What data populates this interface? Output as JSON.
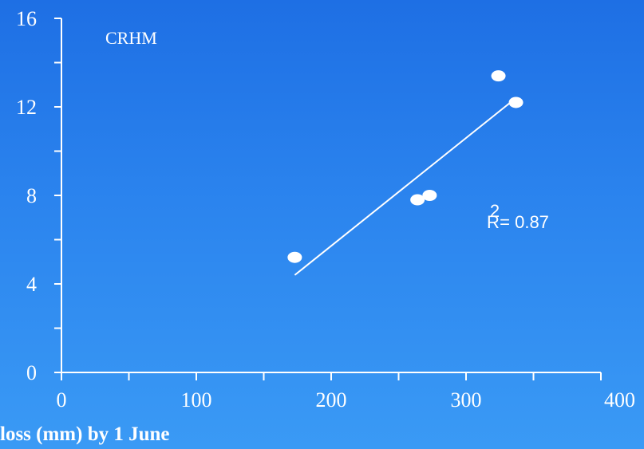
{
  "chart_data": {
    "type": "scatter",
    "annotation": "CRHM",
    "r_squared_label": "R2= 0.87",
    "r_squared": {
      "prefix": "R",
      "superscript": "2",
      "suffix": "= 0.87"
    },
    "xlabel": "loss (mm) by 1 June",
    "ylabel": "",
    "xlim": [
      0,
      400
    ],
    "ylim": [
      0,
      16
    ],
    "x_ticks": [
      0,
      100,
      200,
      300,
      400
    ],
    "y_ticks": [
      0,
      4,
      8,
      12,
      16
    ],
    "x_tick_labels": [
      "0",
      "100",
      "200",
      "300",
      "400"
    ],
    "y_tick_labels": [
      "0",
      "4",
      "8",
      "12",
      "16"
    ],
    "points": [
      {
        "x": 173,
        "y": 5.2
      },
      {
        "x": 264,
        "y": 7.8
      },
      {
        "x": 273,
        "y": 8.0
      },
      {
        "x": 324,
        "y": 13.4
      },
      {
        "x": 337,
        "y": 12.2
      }
    ],
    "trendline": [
      {
        "x": 173,
        "y": 4.4
      },
      {
        "x": 335,
        "y": 12.3
      }
    ],
    "grid": false,
    "colors": {
      "background": "#2b84ee",
      "foreground": "#ffffff"
    }
  }
}
